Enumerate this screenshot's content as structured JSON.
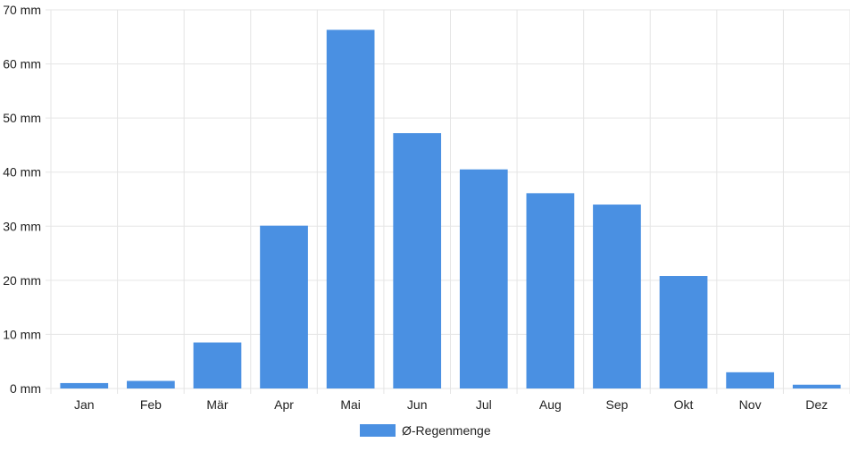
{
  "chart_data": {
    "type": "bar",
    "categories": [
      "Jan",
      "Feb",
      "Mär",
      "Apr",
      "Mai",
      "Jun",
      "Jul",
      "Aug",
      "Sep",
      "Okt",
      "Nov",
      "Dez"
    ],
    "series": [
      {
        "name": "Ø-Regenmenge",
        "values": [
          1.0,
          1.4,
          8.5,
          30.1,
          66.3,
          47.2,
          40.5,
          36.1,
          34.0,
          20.8,
          3.0,
          0.7
        ],
        "color": "#4a90e2"
      }
    ],
    "y_ticks": [
      "0 mm",
      "10 mm",
      "20 mm",
      "30 mm",
      "40 mm",
      "50 mm",
      "60 mm",
      "70 mm"
    ],
    "ylim": [
      0,
      70
    ],
    "y_tick_step": 10,
    "grid": true,
    "legend_position": "bottom-center",
    "grid_color": "#e5e5e5"
  }
}
